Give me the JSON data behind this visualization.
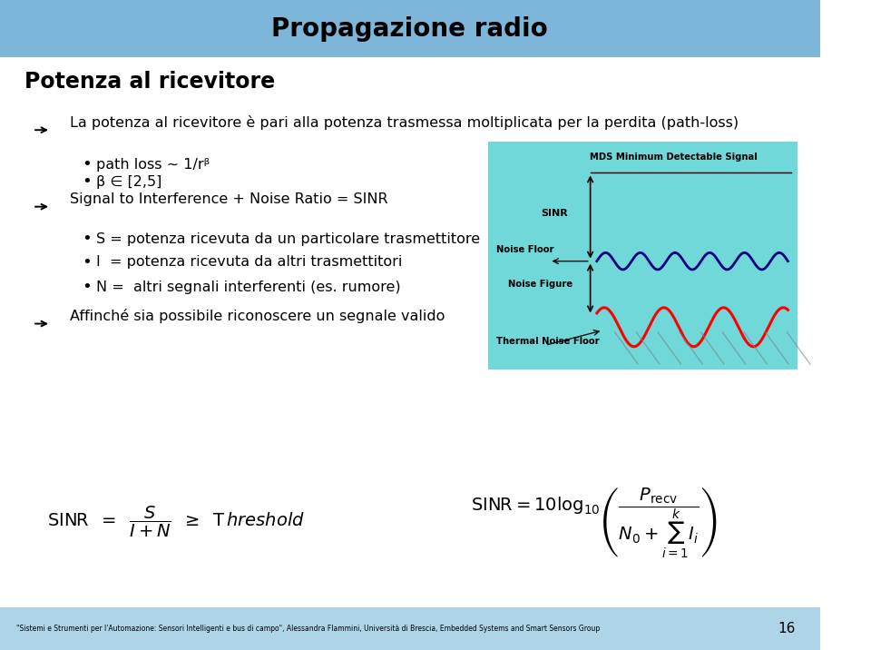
{
  "title": "Propagazione radio",
  "title_bg": "#7EB6D9",
  "slide_bg": "#FFFFFF",
  "footer_bg": "#AED4E8",
  "footer_text": "\"Sistemi e Strumenti per l'Automazione: Sensori Intelligenti e bus di campo\", Alessandra Flammini, Università di Brescia, Embedded Systems and Smart Sensors Group",
  "footer_page": "16",
  "section_title": "Potenza al ricevitore",
  "bullet1": "La potenza al ricevitore è pari alla potenza trasmessa moltiplicata per la perdita (path-loss)",
  "sub1a": "path loss ~ 1/rᵝ",
  "sub1b": "β ∈ [2,5]",
  "bullet2": "Signal to Interference + Noise Ratio = SINR",
  "sub2a": "S = potenza ricevuta da un particolare trasmettitore",
  "sub2b": "I  = potenza ricevuta da altri trasmettitori",
  "sub2c": "N =  altri segnali interferenti (es. rumore)",
  "bullet3": "Affinché sia possibile riconoscere un segnale valido",
  "diagram_bg": "#70D8D8",
  "formula1": "$\\mathsf{SINR} \\;\\; = \\;\\; \\dfrac{S}{I + N} \\;\\; \\geq \\;\\; \\mathsf{T}\\,\\mathit{hreshold}$",
  "formula2": "$\\mathsf{SINR} = 10\\log_{10}\\!\\left(\\dfrac{P_{\\mathrm{recv}}}{N_0 + \\sum_{i=1}^{k} I_i}\\right)$"
}
